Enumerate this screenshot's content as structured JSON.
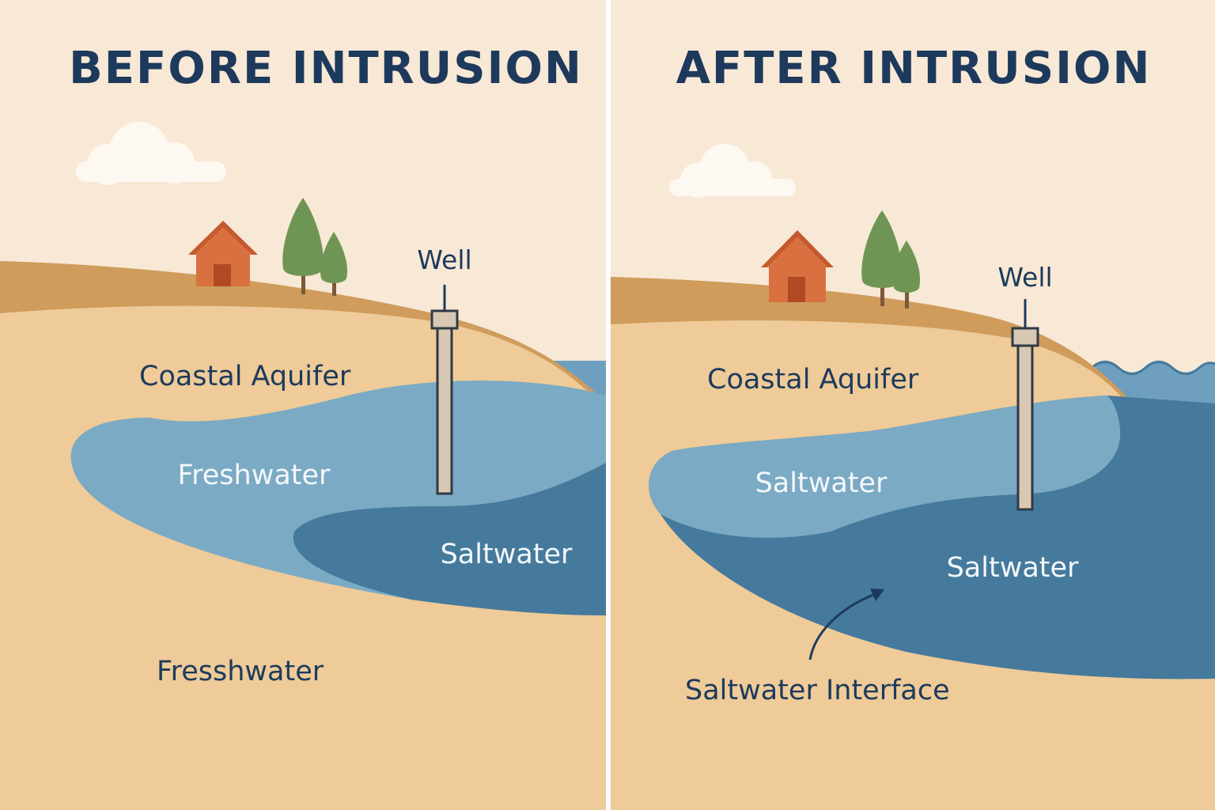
{
  "panels": {
    "before": {
      "title": "BEFORE INTRUSION",
      "well_label": "Well",
      "aquifer_label": "Coastal Aquifer",
      "freshwater_label": "Freshwater",
      "saltwater_label": "Saltwater",
      "lower_label": "Fresshwater"
    },
    "after": {
      "title": "AFTER INTRUSION",
      "well_label": "Well",
      "aquifer_label": "Coastal Aquifer",
      "upper_lens_label": "Saltwater",
      "saltwater_label": "Saltwater",
      "interface_label": "Saltwater Interface"
    }
  },
  "colors": {
    "sky": "#f8e8d6",
    "sand": "#eecb98",
    "topsoil": "#cf9c5c",
    "freshwater": "#7baac5",
    "saltwater": "#457a9c",
    "sea": "#6f9fbf",
    "title_text": "#1d3a5c",
    "light_text": "#f4f7fa",
    "house_wall": "#d9703f",
    "house_roof": "#c55a2e",
    "tree": "#6f9555",
    "trunk": "#7b5a3a",
    "cloud": "#fdf8f1",
    "well_casing": "#d8c7b3",
    "divider": "#ffffff"
  }
}
